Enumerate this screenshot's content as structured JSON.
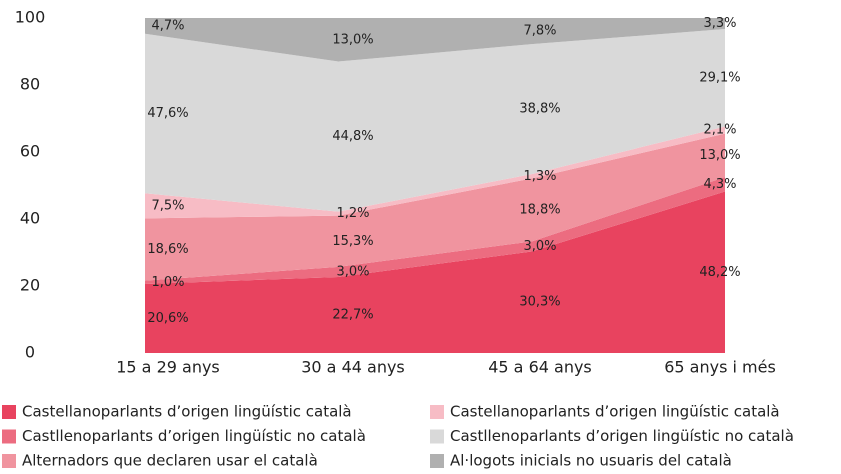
{
  "chart_data": {
    "type": "stacked_area",
    "categories": [
      "15 a 29 anys",
      "30 a 44 anys",
      "45 a 64 anys",
      "65 anys i més"
    ],
    "ylim": [
      0,
      100
    ],
    "yticks": [
      0,
      20,
      40,
      60,
      80,
      100
    ],
    "grid": false,
    "legend": "bottom",
    "series": [
      {
        "name": "Castellanoparlants d’origen lingüístic català",
        "color": "#e8435f",
        "values": [
          20.6,
          22.7,
          30.3,
          48.2
        ],
        "value_labels": [
          "20,6%",
          "22,7%",
          "30,3%",
          "48,2%"
        ]
      },
      {
        "name": "Castllenoparlants d’origen lingüístic no català",
        "color": "#ec6c80",
        "values": [
          1.0,
          3.0,
          3.0,
          4.3
        ],
        "value_labels": [
          "1,0%",
          "3,0%",
          "3,0%",
          "4,3%"
        ]
      },
      {
        "name": "Alternadors que declaren usar el català",
        "color": "#f0949f",
        "values": [
          18.6,
          15.3,
          18.8,
          13.0
        ],
        "value_labels": [
          "18,6%",
          "15,3%",
          "18,8%",
          "13,0%"
        ]
      },
      {
        "name": "Castellanoparlants d’origen lingüístic català",
        "color": "#f7bcc5",
        "values": [
          7.5,
          1.2,
          1.3,
          2.1
        ],
        "value_labels": [
          "7,5%",
          "1,2%",
          "1,3%",
          "2,1%"
        ]
      },
      {
        "name": "Castllenoparlants d’origen lingüístic no català",
        "color": "#d9d9d9",
        "values": [
          47.6,
          44.8,
          38.8,
          29.1
        ],
        "value_labels": [
          "47,6%",
          "44,8%",
          "38,8%",
          "29,1%"
        ]
      },
      {
        "name": "Al·logots inicials no usuaris del català",
        "color": "#b0b0b0",
        "values": [
          4.7,
          13.0,
          7.8,
          3.3
        ],
        "value_labels": [
          "4,7%",
          "13,0%",
          "7,8%",
          "3,3%"
        ]
      }
    ]
  }
}
